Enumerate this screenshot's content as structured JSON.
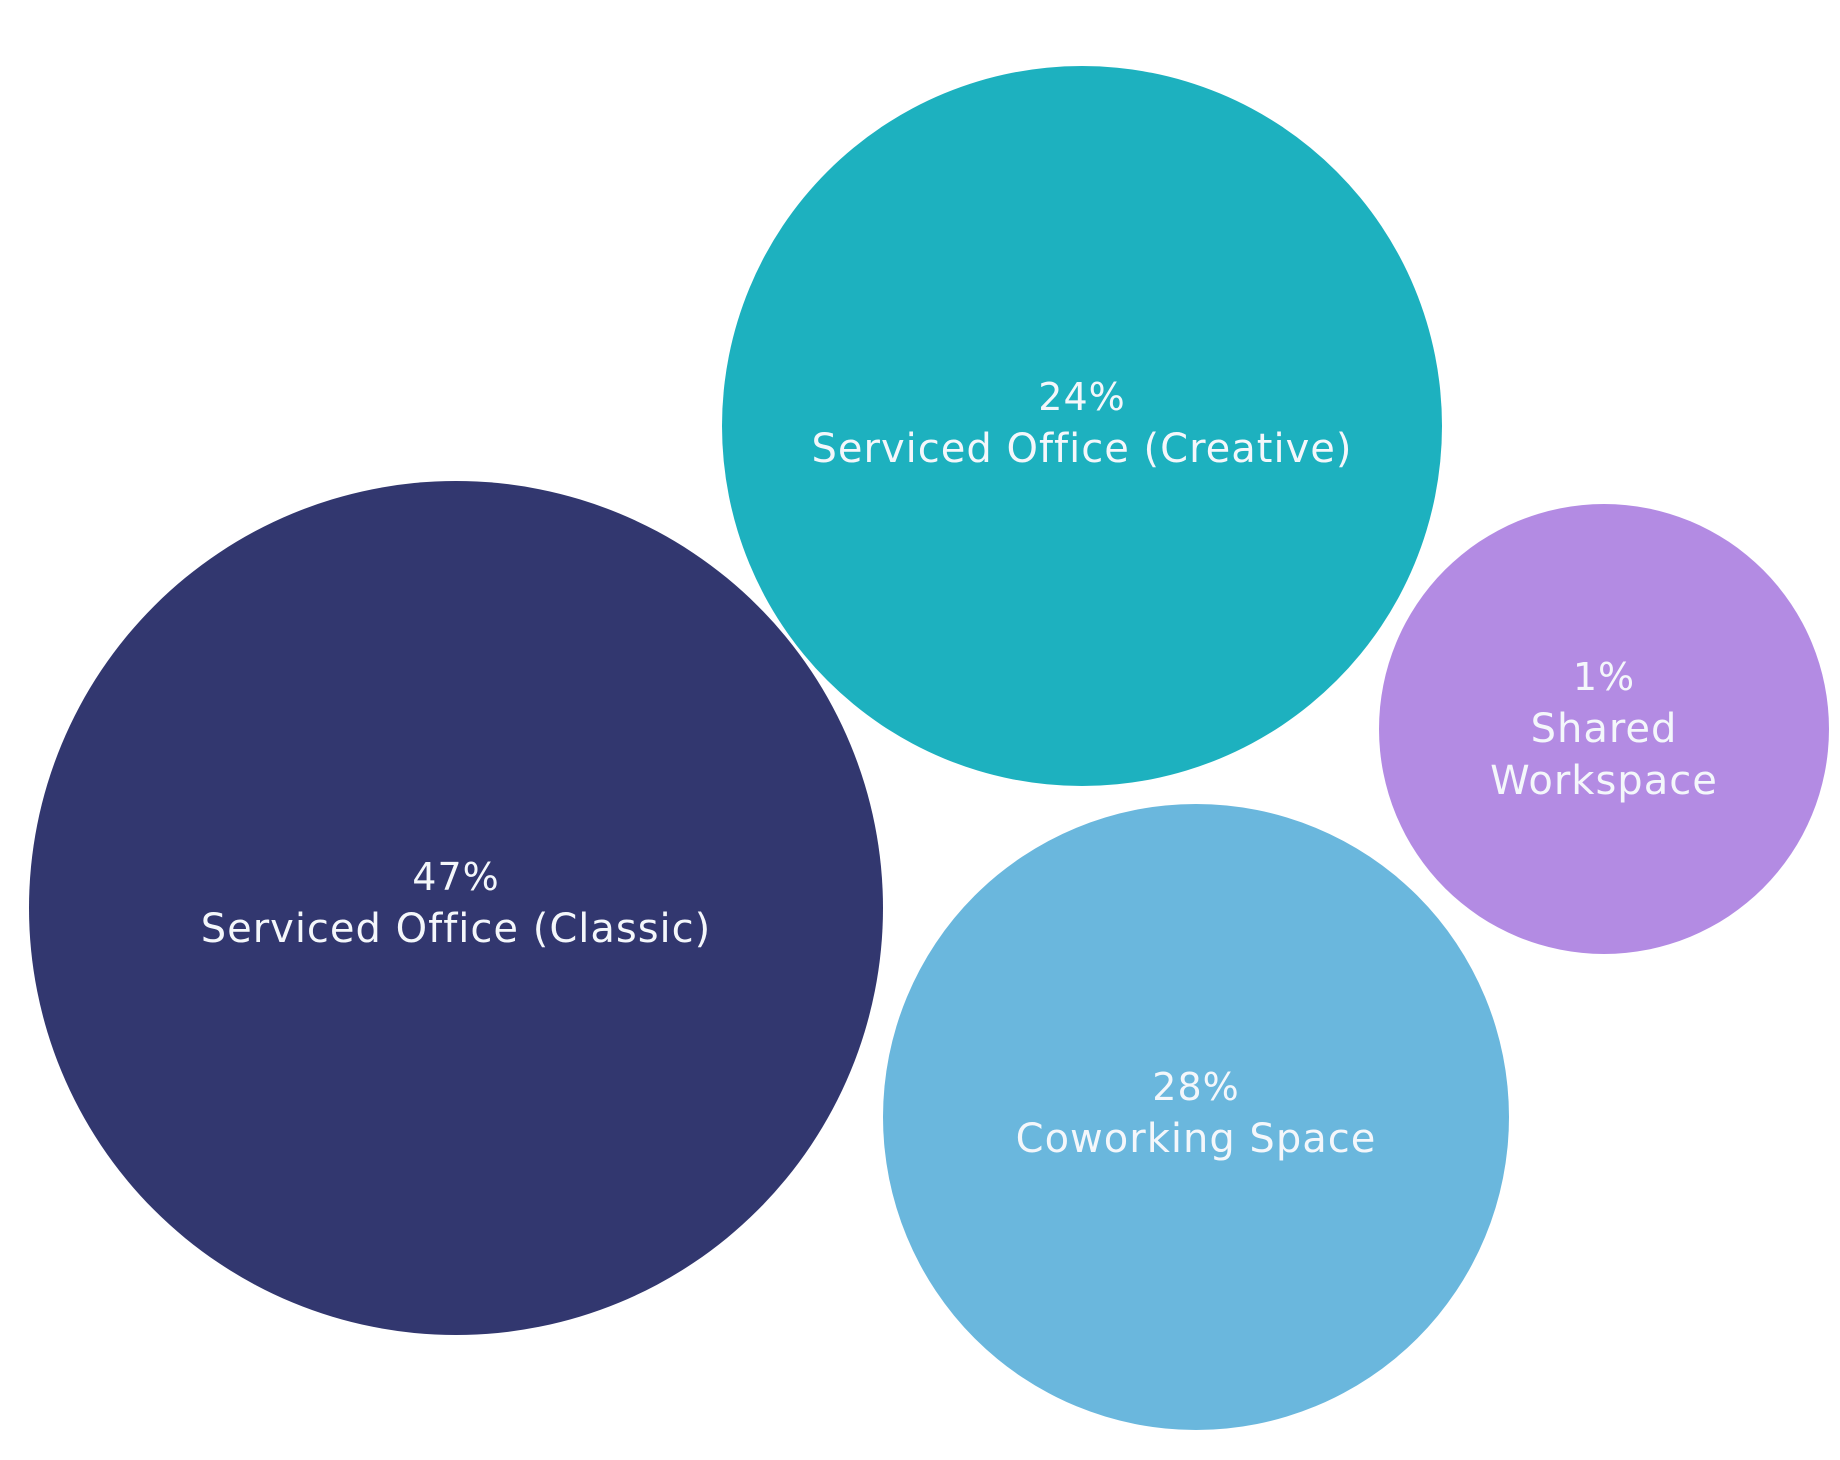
{
  "chart_data": {
    "type": "bubble",
    "title": "",
    "series": [
      {
        "name": "Serviced Office (Classic)",
        "value": 47,
        "value_label": "47%",
        "label_lines": [
          "Serviced Office (Classic)"
        ],
        "color": "#32376f"
      },
      {
        "name": "Coworking Space",
        "value": 28,
        "value_label": "28%",
        "label_lines": [
          "Coworking Space"
        ],
        "color": "#6ab7dd"
      },
      {
        "name": "Serviced Office (Creative)",
        "value": 24,
        "value_label": "24%",
        "label_lines": [
          "Serviced Office (Creative)"
        ],
        "color": "#1db1bf"
      },
      {
        "name": "Shared Workspace",
        "value": 1,
        "value_label": "1%",
        "label_lines": [
          "Shared",
          "Workspace"
        ],
        "color": "#b38be3"
      }
    ]
  }
}
